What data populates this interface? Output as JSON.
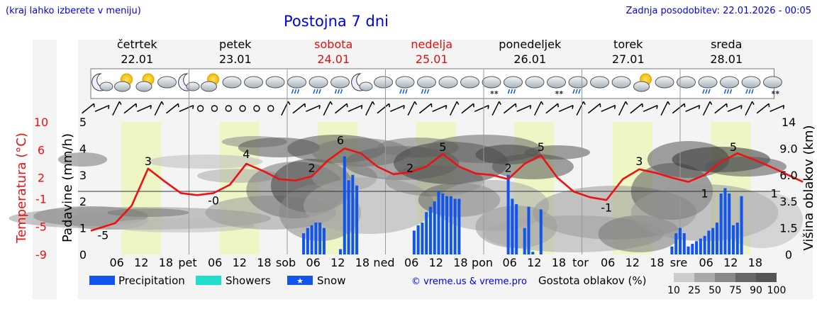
{
  "header": {
    "hint": "(kraj lahko izberete v meniju)",
    "title": "Postojna 7 dni",
    "updated": "Zadnja posodobitev: 22.01.2026 - 00:05"
  },
  "days": [
    {
      "name": "četrtek",
      "date": "22.01",
      "weekend": false,
      "abbr": ""
    },
    {
      "name": "petek",
      "date": "23.01",
      "weekend": false,
      "abbr": "pet"
    },
    {
      "name": "sobota",
      "date": "24.01",
      "weekend": true,
      "abbr": "sob"
    },
    {
      "name": "nedelja",
      "date": "25.01",
      "weekend": true,
      "abbr": "ned"
    },
    {
      "name": "ponedeljek",
      "date": "26.01",
      "weekend": false,
      "abbr": "pon"
    },
    {
      "name": "torek",
      "date": "27.01",
      "weekend": false,
      "abbr": "tor"
    },
    {
      "name": "sreda",
      "date": "28.01",
      "weekend": false,
      "abbr": "sre"
    }
  ],
  "legend": {
    "precipitation": "Precipitation",
    "showers": "Showers",
    "snow": "Snow",
    "copyright": "© vreme.us & vreme.pro",
    "cloud_density": "Gostota oblakov (%)",
    "density_steps": [
      "10",
      "25",
      "50",
      "75",
      "90",
      "100"
    ]
  },
  "colors": {
    "temperature": "#ee1111",
    "precipitation": "#1155ee",
    "showers": "#22ddcc",
    "link": "#0000ee",
    "daylight": "#eef6c6"
  },
  "chart_data": {
    "type": "line",
    "title": "Postojna 7 dni",
    "xlabel": "",
    "x_hour_ticks": [
      "06",
      "12",
      "18"
    ],
    "left_axis_precip": {
      "label": "Padavine (mm/h)",
      "ticks": [
        "0",
        "1",
        "2",
        "3",
        "4",
        "5"
      ],
      "range": [
        0,
        5
      ]
    },
    "left_axis_temp": {
      "label": "Temperatura (°C)",
      "ticks": [
        "-9",
        "-5",
        "-1",
        "2",
        "6",
        "10"
      ],
      "range": [
        -9,
        10
      ]
    },
    "right_axis_cloud": {
      "label": "Višina oblakov (km)",
      "ticks": [
        "0",
        "1.5",
        "3.5",
        "6.0",
        "9.0",
        "14"
      ]
    },
    "temperature_labels": [
      {
        "hour": 3,
        "value": "-5"
      },
      {
        "hour": 14,
        "value": "3"
      },
      {
        "hour": 30,
        "value": "-0"
      },
      {
        "hour": 38,
        "value": "4"
      },
      {
        "hour": 54,
        "value": "2"
      },
      {
        "hour": 61,
        "value": "6"
      },
      {
        "hour": 78,
        "value": "2"
      },
      {
        "hour": 86,
        "value": "5"
      },
      {
        "hour": 102,
        "value": "2"
      },
      {
        "hour": 110,
        "value": "5"
      },
      {
        "hour": 126,
        "value": "-1"
      },
      {
        "hour": 134,
        "value": "3"
      },
      {
        "hour": 150,
        "value": "1"
      },
      {
        "hour": 157,
        "value": "5"
      },
      {
        "hour": 167,
        "value": "1"
      }
    ],
    "temperature_series": [
      [
        0,
        -5.6
      ],
      [
        6,
        -4.5
      ],
      [
        10,
        -2
      ],
      [
        14,
        3.3
      ],
      [
        18,
        1.5
      ],
      [
        22,
        -0.2
      ],
      [
        26,
        -0.5
      ],
      [
        30,
        -0.2
      ],
      [
        34,
        1
      ],
      [
        38,
        4
      ],
      [
        42,
        3
      ],
      [
        46,
        1.8
      ],
      [
        50,
        1.6
      ],
      [
        54,
        2.2
      ],
      [
        58,
        4.5
      ],
      [
        62,
        6.2
      ],
      [
        66,
        5.5
      ],
      [
        70,
        3.6
      ],
      [
        74,
        2.5
      ],
      [
        78,
        2.8
      ],
      [
        82,
        3.6
      ],
      [
        86,
        5.4
      ],
      [
        90,
        3.6
      ],
      [
        94,
        2.6
      ],
      [
        98,
        2.4
      ],
      [
        102,
        1.8
      ],
      [
        106,
        4
      ],
      [
        110,
        5.2
      ],
      [
        114,
        2
      ],
      [
        118,
        0
      ],
      [
        122,
        -0.8
      ],
      [
        126,
        -1.2
      ],
      [
        130,
        1.8
      ],
      [
        134,
        3.2
      ],
      [
        138,
        2.7
      ],
      [
        142,
        2
      ],
      [
        146,
        1.4
      ],
      [
        150,
        2.4
      ],
      [
        154,
        4.3
      ],
      [
        158,
        5.5
      ],
      [
        162,
        4.6
      ],
      [
        166,
        3.6
      ],
      [
        170,
        2.5
      ],
      [
        174,
        1.4
      ]
    ],
    "precipitation_series": [
      [
        52,
        0.8
      ],
      [
        53,
        1.0
      ],
      [
        54,
        1.1
      ],
      [
        55,
        1.2
      ],
      [
        56,
        1.2
      ],
      [
        57,
        1.0
      ],
      [
        61,
        0.2
      ],
      [
        62,
        3.7
      ],
      [
        63,
        2.8
      ],
      [
        64,
        3.0
      ],
      [
        65,
        2.6
      ],
      [
        79,
        0.9
      ],
      [
        80,
        1.1
      ],
      [
        81,
        1.2
      ],
      [
        82,
        1.6
      ],
      [
        83,
        1.8
      ],
      [
        84,
        2.0
      ],
      [
        85,
        2.4
      ],
      [
        86,
        2.3
      ],
      [
        87,
        2.2
      ],
      [
        88,
        2.2
      ],
      [
        89,
        2.1
      ],
      [
        90,
        2.1
      ],
      [
        102,
        3.0
      ],
      [
        103,
        2.1
      ],
      [
        104,
        1.9
      ],
      [
        106,
        1.0
      ],
      [
        107,
        1.8
      ],
      [
        108,
        0.1
      ],
      [
        110,
        1.7
      ],
      [
        142,
        0.3
      ],
      [
        143,
        0.8
      ],
      [
        144,
        1.0
      ],
      [
        145,
        0.8
      ],
      [
        146,
        0.3
      ],
      [
        147,
        0.4
      ],
      [
        148,
        0.5
      ],
      [
        149,
        0.6
      ],
      [
        150,
        0.7
      ],
      [
        151,
        0.9
      ],
      [
        152,
        1.0
      ],
      [
        153,
        1.2
      ],
      [
        154,
        2.3
      ],
      [
        155,
        2.5
      ],
      [
        156,
        2.3
      ],
      [
        157,
        1.1
      ],
      [
        158,
        1.2
      ],
      [
        159,
        2.2
      ]
    ]
  }
}
